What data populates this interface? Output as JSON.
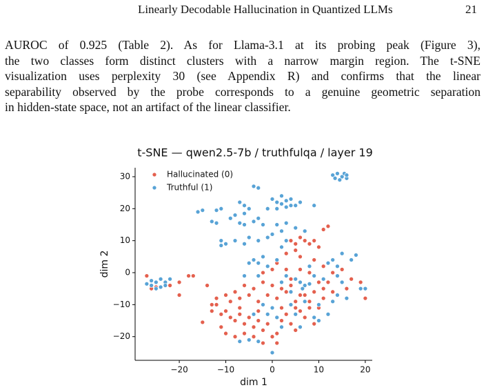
{
  "header": {
    "title": "Linearly Decodable Hallucination in Quantized LLMs",
    "page": "21"
  },
  "paragraph": [
    "AUROC of 0.925 (Table 2). As for Llama-3.1 at its probing peak (Figure 3),",
    "the two classes form distinct clusters with a narrow margin region. The t-SNE",
    "visualization uses perplexity 30 (see Appendix R) and confirms that the linear",
    "separability observed by the probe corresponds to a genuine geometric separation",
    "in hidden-state space, not an artifact of the linear classifier."
  ],
  "chart_data": {
    "type": "scatter",
    "title": "t-SNE — qwen2.5-7b / truthfulqa / layer 19",
    "xlabel": "dim 1",
    "ylabel": "dim 2",
    "xlim": [
      -29.5,
      21.5
    ],
    "ylim": [
      -27.4,
      32.8
    ],
    "xticks": [
      {
        "value": -20,
        "label": "−20"
      },
      {
        "value": -10,
        "label": "−10"
      },
      0,
      10,
      20
    ],
    "yticks": [
      {
        "value": -20,
        "label": "−20"
      },
      {
        "value": -10,
        "label": "−10"
      },
      0,
      10,
      20,
      30
    ],
    "legend": "upper left",
    "series": [
      {
        "name": "Hallucinated (0)",
        "color": "#e4604e",
        "x": [
          -25,
          -26,
          -27,
          -22,
          -20,
          -20,
          -17,
          -18,
          -14,
          -15,
          -12,
          -13,
          2,
          4,
          5,
          6,
          7,
          8,
          9,
          10,
          11,
          12,
          5,
          3,
          6,
          1,
          3,
          9,
          11,
          13,
          15,
          17,
          16,
          20,
          19,
          -10,
          -9,
          -8,
          -7,
          -6,
          -5,
          -4,
          -3,
          -2,
          -1,
          0,
          1,
          2,
          3,
          4,
          5,
          6,
          7,
          8,
          9,
          -11,
          -10,
          -8,
          -6,
          -4,
          -2,
          1,
          -9,
          -7,
          -5,
          -3,
          -1,
          1,
          3,
          5,
          7,
          9,
          11,
          12,
          10,
          8,
          6,
          4,
          2,
          0,
          -2,
          -4,
          -6,
          -8,
          -10,
          -12,
          -11,
          -13,
          -7,
          -3,
          2,
          5,
          4,
          6,
          8,
          10,
          11,
          13,
          0,
          -2
        ],
        "values": [
          -4.5,
          -5,
          -1,
          -4,
          -3,
          -7,
          -1,
          -1,
          -4,
          -15.5,
          -8,
          -10,
          8,
          10,
          9,
          11,
          10,
          9,
          10,
          8,
          13.5,
          14.5,
          7,
          6,
          5,
          3,
          1,
          4,
          2,
          0,
          1,
          -2,
          -5,
          -8,
          -3,
          -12,
          -14,
          -15,
          -13,
          -16,
          -14,
          -17,
          -15,
          -18,
          -16,
          -20,
          -19,
          -15,
          -13,
          -16,
          -18,
          -12,
          -14,
          -11,
          -16,
          -17,
          -19,
          -20,
          -19,
          -20,
          -22,
          -22,
          -9,
          -8,
          -7,
          -9,
          -7,
          -8,
          -6,
          -9,
          -7,
          -6,
          -5,
          -3,
          -3,
          0,
          1,
          -2,
          -5,
          -4,
          -3,
          -5,
          -4,
          -6,
          -7,
          -10,
          -13,
          -12,
          -11,
          -12,
          -11,
          -11,
          -4,
          -7,
          -9,
          -11,
          -8,
          -6,
          1,
          0
        ]
      },
      {
        "name": "Truthful (1)",
        "color": "#58a3d6",
        "x": [
          13,
          14,
          15,
          16,
          14.5,
          15.5,
          13.5,
          16,
          -4,
          -3,
          0,
          1,
          2,
          3,
          4,
          5,
          1,
          3,
          -1,
          2,
          4,
          6,
          9,
          -12,
          -11,
          -7,
          -6,
          -5,
          -6,
          -8,
          -9,
          -7,
          -6,
          -4,
          -3,
          -2,
          -13,
          -16,
          -15,
          -12,
          -11,
          -10,
          -11,
          -8,
          -6,
          -5,
          -3,
          -1,
          0,
          2,
          1,
          3,
          5,
          7,
          3,
          2,
          -4,
          -3,
          -5,
          -2,
          -1,
          1,
          -6,
          -3,
          -27,
          -26,
          -25,
          -24,
          -23,
          -26,
          -24,
          -22,
          -23,
          -25,
          6,
          7,
          5,
          8,
          6.5,
          4,
          3,
          2,
          9,
          11,
          12,
          14,
          13,
          15,
          17,
          18,
          19,
          20,
          16,
          14,
          13,
          10,
          12,
          9,
          10,
          -2,
          0,
          -1,
          1,
          -4,
          -7,
          -5,
          -3,
          0,
          2,
          6,
          5,
          4,
          7,
          15,
          14,
          8
        ],
        "values": [
          30.5,
          31,
          30,
          29.5,
          29,
          31,
          29.5,
          30.5,
          27,
          26.5,
          23,
          22,
          21.5,
          22.5,
          23,
          21,
          20,
          20.5,
          20,
          24,
          21,
          22,
          21,
          19.5,
          20,
          22,
          21,
          20,
          18.5,
          18,
          17,
          15.5,
          15,
          16,
          17,
          15,
          16,
          19,
          19.5,
          15.5,
          10,
          9,
          8.5,
          10,
          9,
          11,
          10,
          11,
          12,
          13,
          15,
          15.5,
          14,
          13,
          10,
          8,
          4,
          3,
          3,
          5,
          2,
          4,
          -1,
          -1,
          -3.5,
          -4,
          -3,
          -2,
          -3,
          -2.5,
          -4.5,
          -2,
          -4,
          -5,
          -3,
          -4,
          -2,
          -3.5,
          -5,
          -6,
          -1,
          -3,
          -1,
          -2,
          3,
          2,
          4,
          6,
          4,
          5.5,
          -5,
          -5,
          -8,
          -7,
          -9,
          -10,
          -13,
          -14,
          -15,
          -10,
          -11,
          -13,
          -14,
          -13,
          -21.5,
          -21,
          -21.5,
          -25,
          -17,
          -17,
          -13,
          -10,
          -9,
          -3,
          -1,
          2
        ]
      }
    ]
  }
}
